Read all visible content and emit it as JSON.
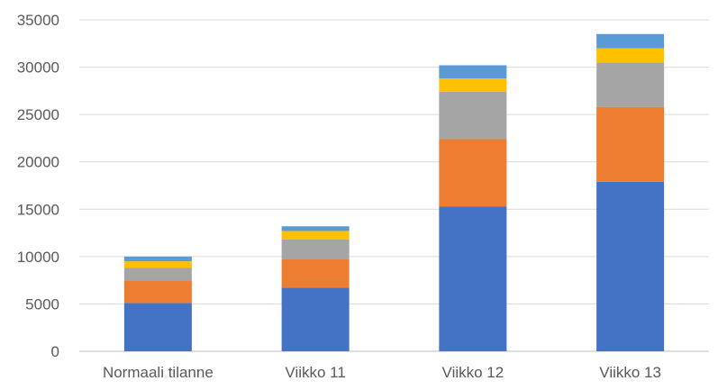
{
  "chart_data": {
    "type": "bar",
    "stacked": true,
    "title": "",
    "xlabel": "",
    "ylabel": "",
    "categories": [
      "Normaali tilanne",
      "Viikko 11",
      "Viikko 12",
      "Viikko 13"
    ],
    "ylim": [
      0,
      35000
    ],
    "yticks": [
      0,
      5000,
      10000,
      15000,
      20000,
      25000,
      30000,
      35000
    ],
    "ytick_labels": [
      "0",
      "5000",
      "10000",
      "15000",
      "20000",
      "25000",
      "30000",
      "35000"
    ],
    "grid": true,
    "legend": "none",
    "series": [
      {
        "color": "#4472C4",
        "values": [
          5100,
          6700,
          15300,
          17900
        ]
      },
      {
        "color": "#ED7D31",
        "values": [
          2400,
          3000,
          7100,
          7900
        ]
      },
      {
        "color": "#A5A5A5",
        "values": [
          1300,
          2100,
          5000,
          4700
        ]
      },
      {
        "color": "#FFC000",
        "values": [
          700,
          900,
          1400,
          1500
        ]
      },
      {
        "color": "#5B9BD5",
        "values": [
          500,
          500,
          1400,
          1500
        ]
      }
    ]
  }
}
